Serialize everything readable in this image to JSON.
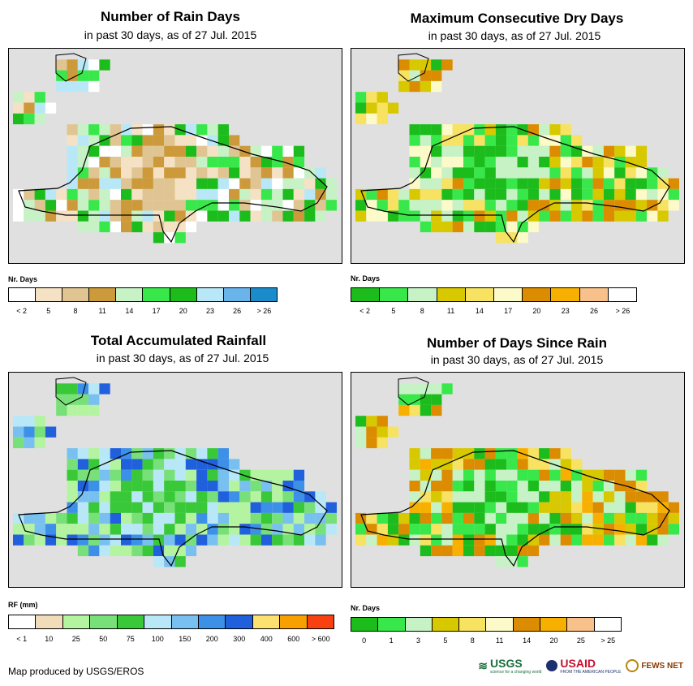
{
  "panels": [
    {
      "title": "Number of Rain Days",
      "subtitle": "in past 30 days, as of 27 Jul. 2015",
      "legend_title": "Nr. Days",
      "legend_colors": [
        "#ffffff",
        "#f5e1c4",
        "#e0c592",
        "#cc9a3a",
        "#c6f2c6",
        "#38e84a",
        "#1cbc1c",
        "#b8e8f8",
        "#6ab4ec",
        "#1a8ccc"
      ],
      "legend_labels": [
        "< 2",
        "5",
        "8",
        "11",
        "14",
        "17",
        "20",
        "23",
        "26",
        "> 26"
      ]
    },
    {
      "title": "Maximum Consecutive Dry Days",
      "subtitle": "in past 30 days, as of 27 Jul. 2015",
      "legend_title": "Nr. Days",
      "legend_colors": [
        "#1cbc1c",
        "#38e84a",
        "#c6f2c6",
        "#d8c800",
        "#f7e262",
        "#fcfac8",
        "#dc8c00",
        "#f8b000",
        "#f8c08a",
        "#ffffff"
      ],
      "legend_labels": [
        "< 2",
        "5",
        "8",
        "11",
        "14",
        "17",
        "20",
        "23",
        "26",
        "> 26"
      ]
    },
    {
      "title": "Total Accumulated Rainfall",
      "subtitle": "in past 30 days, as of 27 Jul. 2015",
      "legend_title": "RF (mm)",
      "legend_colors": [
        "#ffffff",
        "#f0dcb8",
        "#b4f4a0",
        "#78e078",
        "#38c838",
        "#b8e8f8",
        "#78c0f0",
        "#3c90e8",
        "#2060dc",
        "#fce070",
        "#f8a000",
        "#f84010"
      ],
      "legend_labels": [
        "< 1",
        "10",
        "25",
        "50",
        "75",
        "100",
        "150",
        "200",
        "300",
        "400",
        "600",
        "> 600"
      ]
    },
    {
      "title": "Number of Days Since Rain",
      "subtitle": "in past 30 days, as of 27 Jul. 2015",
      "legend_title": "Nr. Days",
      "legend_colors": [
        "#1cbc1c",
        "#38e84a",
        "#c6f2c6",
        "#d8c800",
        "#f7e262",
        "#fcfac8",
        "#dc8c00",
        "#f8b000",
        "#f8c08a",
        "#ffffff"
      ],
      "legend_labels": [
        "0",
        "1",
        "3",
        "5",
        "8",
        "11",
        "14",
        "20",
        "25",
        "> 25"
      ]
    }
  ],
  "footer": "Map produced by USGS/EROS",
  "logos": {
    "usgs": "USGS",
    "usgs_tagline": "science for a changing world",
    "usaid": "USAID",
    "usaid_tagline": "FROM THE AMERICAN PEOPLE",
    "fewsnet": "FEWS NET"
  },
  "map_background": "#e0e0e0"
}
